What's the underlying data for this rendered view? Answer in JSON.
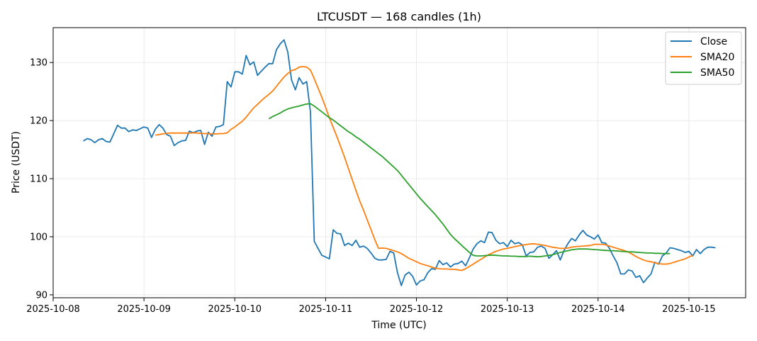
{
  "chart_data": {
    "type": "line",
    "title": "LTCUSDT — 168 candles (1h)",
    "xlabel": "Time (UTC)",
    "ylabel": "Price (USDT)",
    "x_start": "2025-10-08 08:00",
    "x_interval_hours": 1,
    "xlim": [
      "2025-10-08 00:00",
      "2025-10-15 15:00"
    ],
    "ylim": [
      89.5,
      136
    ],
    "x_ticks": [
      "2025-10-08",
      "2025-10-09",
      "2025-10-10",
      "2025-10-11",
      "2025-10-12",
      "2025-10-13",
      "2025-10-14",
      "2025-10-15"
    ],
    "y_ticks": [
      90,
      100,
      110,
      120,
      130
    ],
    "grid": true,
    "legend_position": "top-right",
    "colors": {
      "Close": "#1f77b4",
      "SMA20": "#ff7f0e",
      "SMA50": "#2ca02c"
    },
    "series": [
      {
        "name": "Close",
        "values": [
          116.5,
          116.9,
          116.7,
          116.2,
          116.7,
          116.9,
          116.4,
          116.3,
          117.7,
          119.2,
          118.7,
          118.7,
          118.1,
          118.4,
          118.3,
          118.6,
          118.9,
          118.7,
          117.1,
          118.5,
          119.3,
          118.7,
          117.6,
          117.3,
          115.7,
          116.2,
          116.5,
          116.6,
          118.2,
          117.9,
          118.2,
          118.3,
          115.9,
          118.0,
          117.3,
          118.9,
          119.0,
          119.3,
          126.7,
          125.8,
          128.4,
          128.4,
          128.0,
          131.2,
          129.6,
          130.1,
          127.8,
          128.5,
          129.2,
          129.8,
          129.8,
          132.2,
          133.2,
          133.9,
          131.8,
          127.0,
          125.3,
          127.4,
          126.3,
          126.7,
          121.5,
          99.2,
          98.0,
          96.8,
          96.5,
          96.2,
          101.2,
          100.6,
          100.5,
          98.5,
          98.9,
          98.5,
          99.4,
          98.2,
          98.4,
          98.0,
          97.2,
          96.3,
          96.0,
          96.0,
          96.1,
          97.5,
          97.2,
          93.8,
          91.6,
          93.4,
          93.9,
          93.2,
          91.7,
          92.4,
          92.6,
          93.8,
          94.5,
          94.4,
          95.9,
          95.2,
          95.5,
          94.8,
          95.3,
          95.4,
          95.8,
          95.0,
          96.4,
          97.9,
          98.8,
          99.3,
          99.0,
          100.8,
          100.7,
          99.4,
          98.8,
          99.0,
          98.3,
          99.4,
          98.8,
          99.0,
          98.6,
          96.7,
          97.3,
          97.4,
          98.2,
          98.4,
          98.0,
          96.3,
          96.9,
          97.6,
          96.0,
          97.6,
          98.8,
          99.7,
          99.3,
          100.3,
          101.1,
          100.3,
          100.0,
          99.6,
          100.3,
          99.0,
          98.9,
          98.0,
          96.7,
          95.5,
          93.6,
          93.6,
          94.3,
          94.1,
          93.0,
          93.3,
          92.1,
          92.9,
          93.6,
          95.6,
          95.3,
          96.7,
          97.2,
          98.1,
          98.0,
          97.8,
          97.6,
          97.3,
          97.5,
          96.7,
          97.8,
          97.1,
          97.8,
          98.2,
          98.2,
          98.1
        ]
      },
      {
        "name": "SMA20",
        "values": [
          null,
          null,
          null,
          null,
          null,
          null,
          null,
          null,
          null,
          null,
          null,
          null,
          null,
          null,
          null,
          null,
          null,
          null,
          null,
          117.5,
          117.6,
          117.7,
          117.8,
          117.85,
          117.85,
          117.85,
          117.85,
          117.85,
          117.85,
          117.9,
          117.85,
          117.8,
          117.75,
          117.75,
          117.7,
          117.7,
          117.75,
          117.75,
          117.9,
          118.5,
          118.9,
          119.4,
          119.9,
          120.6,
          121.4,
          122.2,
          122.8,
          123.4,
          124.0,
          124.5,
          125.1,
          125.9,
          126.7,
          127.5,
          128.1,
          128.6,
          128.8,
          129.2,
          129.3,
          129.2,
          128.7,
          127.2,
          125.6,
          124.0,
          122.3,
          120.5,
          118.8,
          117.2,
          115.5,
          113.7,
          111.8,
          109.9,
          108.0,
          106.2,
          104.6,
          102.9,
          101.2,
          99.5,
          98.0,
          98.05,
          98.0,
          97.8,
          97.6,
          97.4,
          97.1,
          96.7,
          96.3,
          96.0,
          95.7,
          95.4,
          95.2,
          95.0,
          94.8,
          94.6,
          94.5,
          94.45,
          94.45,
          94.4,
          94.4,
          94.3,
          94.2,
          94.5,
          94.9,
          95.3,
          95.7,
          96.1,
          96.5,
          96.9,
          97.2,
          97.5,
          97.7,
          97.9,
          98.0,
          98.15,
          98.3,
          98.45,
          98.55,
          98.65,
          98.75,
          98.8,
          98.7,
          98.6,
          98.5,
          98.35,
          98.2,
          98.1,
          98.0,
          98.0,
          98.05,
          98.2,
          98.3,
          98.35,
          98.4,
          98.45,
          98.5,
          98.7,
          98.7,
          98.7,
          98.6,
          98.4,
          98.2,
          98.0,
          97.8,
          97.6,
          97.4,
          97.0,
          96.6,
          96.3,
          96.0,
          95.8,
          95.7,
          95.5,
          95.4,
          95.3,
          95.3,
          95.4,
          95.6,
          95.8,
          96.0,
          96.2,
          96.5,
          96.8
        ]
      },
      {
        "name": "SMA50",
        "values": [
          null,
          null,
          null,
          null,
          null,
          null,
          null,
          null,
          null,
          null,
          null,
          null,
          null,
          null,
          null,
          null,
          null,
          null,
          null,
          null,
          null,
          null,
          null,
          null,
          null,
          null,
          null,
          null,
          null,
          null,
          null,
          null,
          null,
          null,
          null,
          null,
          null,
          null,
          null,
          null,
          null,
          null,
          null,
          null,
          null,
          null,
          null,
          null,
          null,
          120.3,
          120.7,
          121.0,
          121.3,
          121.7,
          122.0,
          122.2,
          122.35,
          122.5,
          122.7,
          122.85,
          122.9,
          122.5,
          122.0,
          121.5,
          121.0,
          120.5,
          120.1,
          119.6,
          119.1,
          118.6,
          118.1,
          117.7,
          117.2,
          116.8,
          116.3,
          115.8,
          115.3,
          114.8,
          114.3,
          113.8,
          113.2,
          112.6,
          112.0,
          111.4,
          110.6,
          109.8,
          109.0,
          108.2,
          107.4,
          106.6,
          105.9,
          105.2,
          104.5,
          103.8,
          103.0,
          102.2,
          101.3,
          100.4,
          99.7,
          99.1,
          98.5,
          97.9,
          97.3,
          96.8,
          96.7,
          96.7,
          96.75,
          96.8,
          96.85,
          96.8,
          96.75,
          96.7,
          96.7,
          96.65,
          96.65,
          96.6,
          96.6,
          96.6,
          96.65,
          96.6,
          96.55,
          96.6,
          96.7,
          96.8,
          96.9,
          97.1,
          97.3,
          97.45,
          97.6,
          97.75,
          97.85,
          97.9,
          97.9,
          97.9,
          97.85,
          97.8,
          97.75,
          97.7,
          97.65,
          97.6,
          97.6,
          97.55,
          97.5,
          97.45,
          97.4,
          97.4,
          97.35,
          97.3,
          97.25,
          97.2,
          97.2,
          97.15,
          97.15,
          97.1,
          97.1,
          97.1
        ]
      }
    ]
  }
}
